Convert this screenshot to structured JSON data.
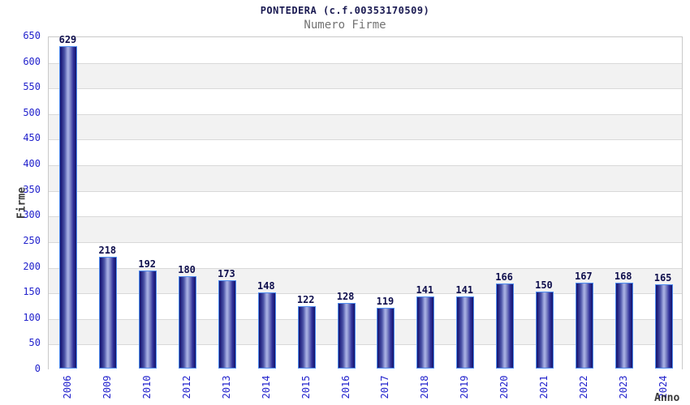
{
  "header": {
    "title": "PONTEDERA (c.f.00353170509)",
    "subtitle": "Numero Firme"
  },
  "axes": {
    "y_title": "Firme",
    "x_title": "Anno",
    "y_ticks": [
      "0",
      "50",
      "100",
      "150",
      "200",
      "250",
      "300",
      "350",
      "400",
      "450",
      "500",
      "550",
      "600",
      "650"
    ]
  },
  "colors": {
    "title_text": "#1a1a52",
    "subtitle_text": "#737373",
    "tick_label_text": "#2222cc",
    "bar_value_text": "#0f0f4d",
    "axis_title_text": "#3a3a3a",
    "bar_border": "#4f8df0",
    "bar_dark": "#16166f",
    "bar_light": "#aab2e4",
    "band_white": "#ffffff",
    "band_gray": "#f2f2f2",
    "gridline": "#d9d9d9",
    "plot_border": "#c9c9c9",
    "background": "#ffffff"
  },
  "chart_data": {
    "type": "bar",
    "title": "PONTEDERA (c.f.00353170509)",
    "subtitle": "Numero Firme",
    "xlabel": "Anno",
    "ylabel": "Firme",
    "categories": [
      "2006",
      "2009",
      "2010",
      "2012",
      "2013",
      "2014",
      "2015",
      "2016",
      "2017",
      "2018",
      "2019",
      "2020",
      "2021",
      "2022",
      "2023",
      "2024"
    ],
    "values": [
      629,
      218,
      192,
      180,
      173,
      148,
      122,
      128,
      119,
      141,
      141,
      166,
      150,
      167,
      168,
      165
    ],
    "ylim": [
      0,
      650
    ],
    "ytick_step": 50,
    "grid": "horizontal-bands-alternating",
    "legend": "none",
    "bar_labels_shown": true
  }
}
